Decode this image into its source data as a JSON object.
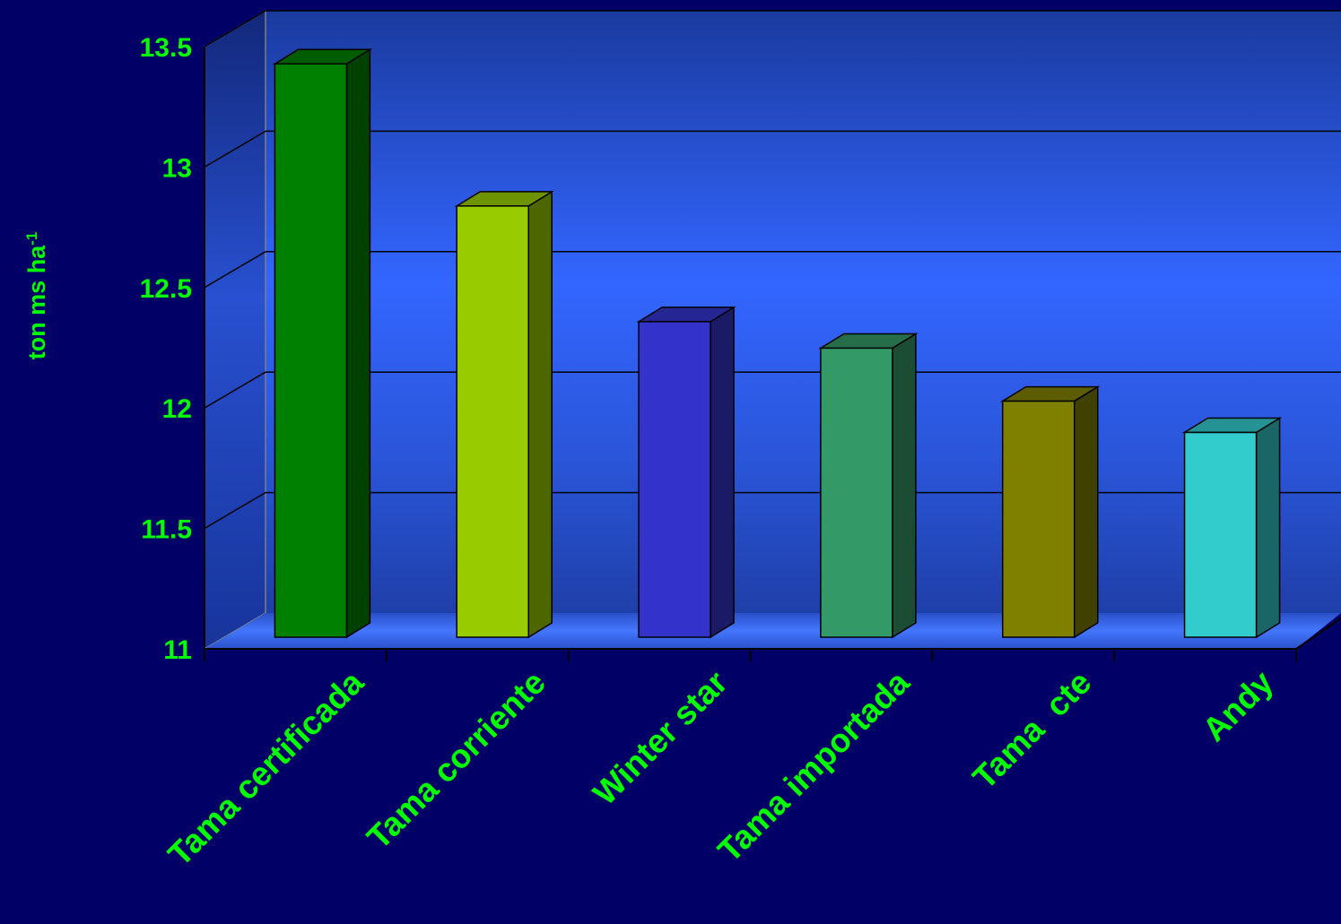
{
  "chart_data": {
    "type": "bar",
    "style": "3d-column",
    "categories": [
      "Tama certificada",
      "Tama corriente",
      "Winter star",
      "Tama importada",
      "Tama  cte",
      "Andy"
    ],
    "values": [
      13.38,
      12.79,
      12.31,
      12.2,
      11.98,
      11.85
    ],
    "colors": [
      "#008000",
      "#99CC00",
      "#3333CC",
      "#339966",
      "#808000",
      "#33CCCC"
    ],
    "ylabel": "ton ms ha",
    "ylabel_superscript": "-1",
    "ylim": [
      11,
      13.5
    ],
    "yticks": [
      11,
      11.5,
      12,
      12.5,
      13,
      13.5
    ],
    "ytick_labels": [
      "11",
      "11.5",
      "12",
      "12.5",
      "13",
      "13.5"
    ],
    "grid": true,
    "text_color": "#00FF00",
    "background_color": "#000066",
    "wall_color": "#3366FF"
  }
}
